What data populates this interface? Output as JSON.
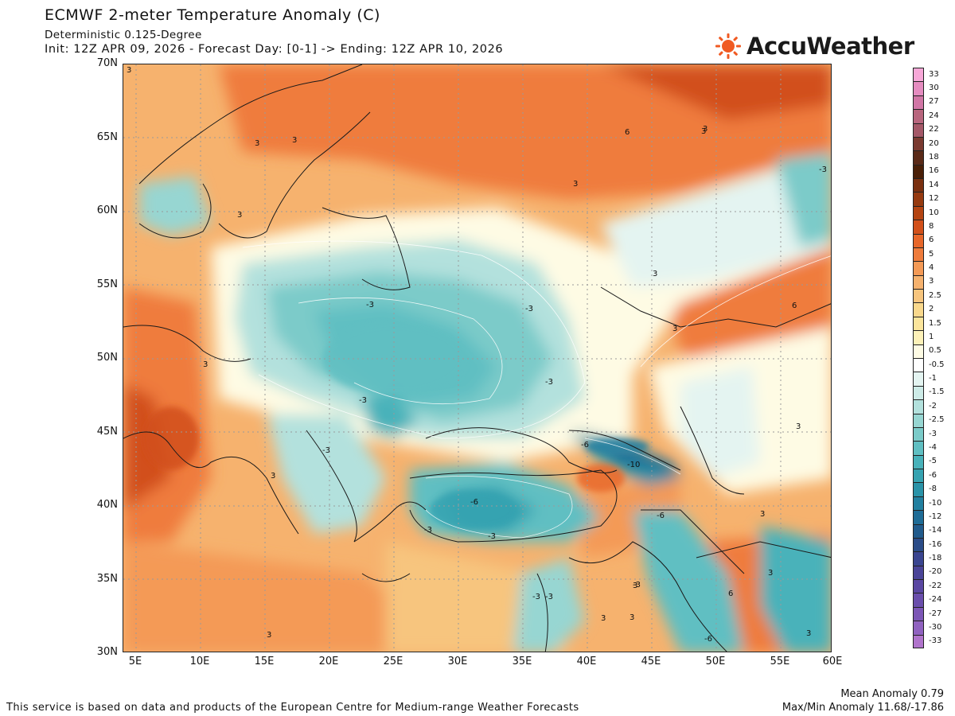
{
  "header": {
    "title": "ECMWF 2-meter Temperature Anomaly (C)",
    "subtitle": "Deterministic 0.125-Degree",
    "init_line": "Init: 12Z APR 09, 2026 - Forecast Day: [0-1] -> Ending: 12Z APR 10, 2026"
  },
  "brand": {
    "name": "AccuWeather",
    "logo_icon": "sun-icon",
    "logo_color": "#f05a22"
  },
  "map": {
    "lat_labels": [
      "70N",
      "65N",
      "60N",
      "55N",
      "50N",
      "45N",
      "40N",
      "35N",
      "30N"
    ],
    "lon_labels": [
      "5E",
      "10E",
      "15E",
      "20E",
      "25E",
      "30E",
      "35E",
      "40E",
      "45E",
      "50E",
      "55E",
      "60E"
    ],
    "lon_range": [
      5,
      60
    ],
    "lat_range": [
      30,
      70
    ],
    "contour_labels": [
      "3",
      "3",
      "3",
      "3",
      "3",
      "3",
      "3",
      "-3",
      "-3",
      "-3",
      "-3",
      "-3",
      "-3",
      "-3",
      "-3",
      "-6",
      "-6",
      "-6",
      "-6",
      "-10",
      "3",
      "3",
      "6",
      "6",
      "6",
      "3",
      "3",
      "3",
      "3",
      "-3",
      "3",
      "-3",
      "-3",
      "3",
      "3",
      "3",
      "3",
      "3"
    ]
  },
  "colorbar": {
    "labels": [
      "33",
      "30",
      "27",
      "24",
      "22",
      "20",
      "18",
      "16",
      "14",
      "12",
      "10",
      "8",
      "6",
      "5",
      "4",
      "3",
      "2.5",
      "2",
      "1.5",
      "1",
      "0.5",
      "-0.5",
      "-1",
      "-1.5",
      "-2",
      "-2.5",
      "-3",
      "-4",
      "-5",
      "-6",
      "-8",
      "-10",
      "-12",
      "-14",
      "-16",
      "-18",
      "-20",
      "-22",
      "-24",
      "-27",
      "-30",
      "-33"
    ],
    "colors": [
      "#f7a8d8",
      "#e58cc0",
      "#d176a6",
      "#b8667e",
      "#a45868",
      "#7a3a30",
      "#5a2a18",
      "#4a2008",
      "#7a3010",
      "#963a10",
      "#b44412",
      "#d2501a",
      "#e8672a",
      "#ef7c3c",
      "#f49a56",
      "#f6b26e",
      "#f7c57e",
      "#f9d88c",
      "#fbe59c",
      "#fdf1b8",
      "#fefbe4",
      "#ffffff",
      "#e4f4f1",
      "#cdebe7",
      "#b3e1dd",
      "#97d6d2",
      "#7bcbc9",
      "#60bfc2",
      "#48b2ba",
      "#36a3b1",
      "#2a93a8",
      "#2280a0",
      "#1f6c96",
      "#215b8c",
      "#2b4c88",
      "#3a4590",
      "#4a4498",
      "#5a47a2",
      "#6a4eac",
      "#7c56b6",
      "#9062c0",
      "#b074cc"
    ]
  },
  "stats": {
    "mean": "Mean Anomaly 0.79",
    "maxmin": "Max/Min Anomaly 11.68/-17.86"
  },
  "footer": "This service is based on data and products of the European Centre for Medium-range Weather Forecasts"
}
